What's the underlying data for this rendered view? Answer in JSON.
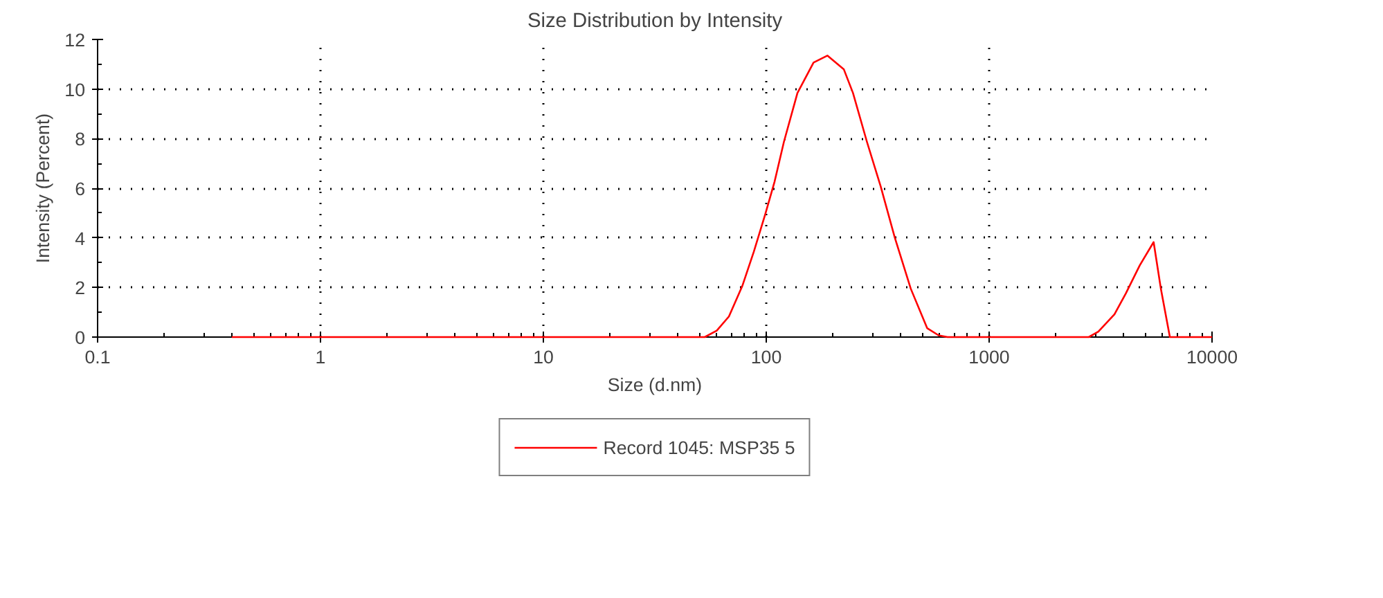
{
  "chart_data": {
    "type": "line",
    "title": "Size Distribution by Intensity",
    "xlabel": "Size (d.nm)",
    "ylabel": "Intensity (Percent)",
    "log": "x",
    "xlim": [
      0.1,
      10000
    ],
    "xticks": [
      0.1,
      1,
      10,
      100,
      1000,
      10000
    ],
    "ylim": [
      0,
      12
    ],
    "yticks": [
      0,
      2,
      4,
      6,
      8,
      10,
      12
    ],
    "grid": true,
    "legend": "bottom",
    "marker": "none",
    "line_style": "solid",
    "series": [
      {
        "name": "Record 1045: MSP35 5",
        "color": "#ff0000",
        "x": [
          0.4,
          1,
          10,
          53,
          60,
          68,
          78,
          88,
          99,
          109,
          120,
          138,
          163,
          188,
          223,
          245,
          283,
          326,
          377,
          445,
          527,
          593,
          650,
          1000,
          2800,
          3090,
          3650,
          4110,
          4740,
          5470,
          5890,
          6470,
          10000
        ],
        "values": [
          0,
          0,
          0,
          0,
          0.26,
          0.83,
          2.05,
          3.45,
          4.96,
          6.27,
          7.87,
          9.84,
          11.07,
          11.35,
          10.79,
          9.84,
          7.87,
          6.08,
          4.02,
          1.95,
          0.36,
          0.07,
          0,
          0,
          0,
          0.22,
          0.92,
          1.77,
          2.89,
          3.83,
          1.97,
          0,
          0
        ]
      }
    ]
  }
}
